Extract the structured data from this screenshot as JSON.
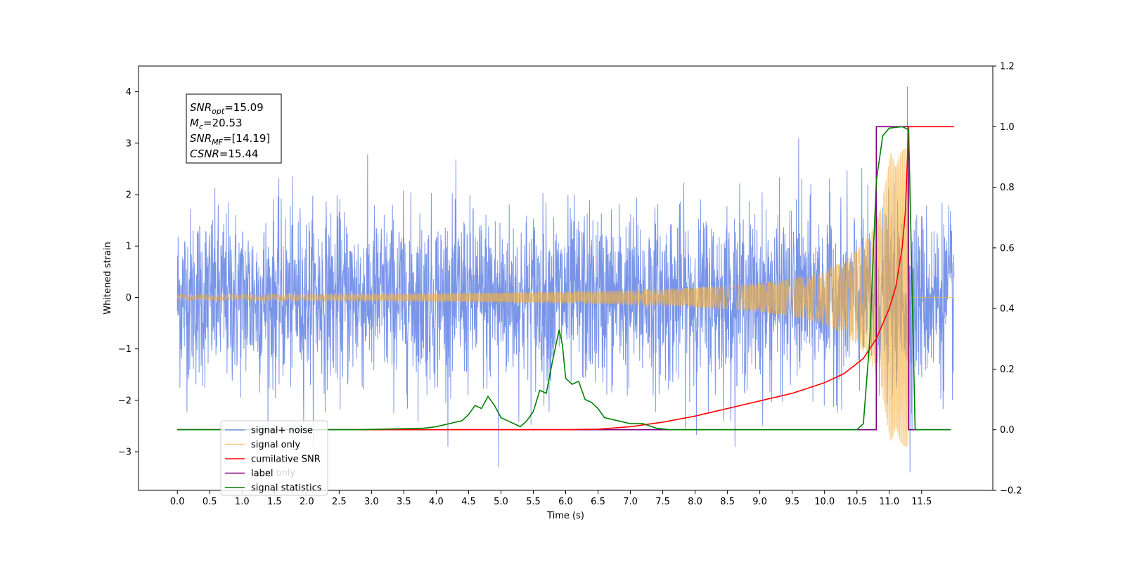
{
  "chart_data": {
    "type": "line",
    "xlabel": "Time (s)",
    "ylabel": "Whitened strain",
    "xlim": [
      -0.6,
      12.6
    ],
    "ylim": [
      -3.75,
      4.5
    ],
    "y2lim": [
      -0.2,
      1.2
    ],
    "x_ticks": [
      "0.0",
      "0.5",
      "1.0",
      "1.5",
      "2.0",
      "2.5",
      "3.0",
      "3.5",
      "4.0",
      "4.5",
      "5.0",
      "5.5",
      "6.0",
      "6.5",
      "7.0",
      "7.5",
      "8.0",
      "8.5",
      "9.0",
      "9.5",
      "10.0",
      "10.5",
      "11.0",
      "11.5"
    ],
    "y_ticks": [
      "−3",
      "−2",
      "−1",
      "0",
      "1",
      "2",
      "3",
      "4"
    ],
    "y2_ticks": [
      "−0.2",
      "0.0",
      "0.2",
      "0.4",
      "0.6",
      "0.8",
      "1.0",
      "1.2"
    ],
    "grid": false,
    "legend_placement": "lower-left",
    "info_box": {
      "lines": [
        {
          "main": "SNR",
          "sub": "opt",
          "rest": "=15.09"
        },
        {
          "main": "M",
          "sub": "c",
          "rest": "=20.53"
        },
        {
          "main": "SNR",
          "sub": "MF",
          "rest": "=[14.19]"
        },
        {
          "main": "CSNR",
          "sub": "",
          "rest": "=15.44"
        }
      ]
    },
    "hidden_overlapped_legend_text": [
      "label only"
    ],
    "series": [
      {
        "name": "signal+ noise",
        "color": "#6b8ae6",
        "axis": "left",
        "description_values": {
          "x_start": 0.0,
          "x_end": 12.0,
          "typical_band": [
            -1.9,
            1.9
          ],
          "max": 4.1,
          "min": -3.4
        }
      },
      {
        "name": "signal only",
        "color": "#f5b041",
        "axis": "left",
        "chirp": {
          "x_start": 0.0,
          "x_end": 12.0,
          "merger_time": 11.3,
          "peak_amplitude": 2.9
        }
      },
      {
        "name": "cumilative SNR",
        "color": "#ff0000",
        "axis": "right",
        "x": [
          0.0,
          6.0,
          6.5,
          7.0,
          7.5,
          8.0,
          8.5,
          9.0,
          9.5,
          10.0,
          10.3,
          10.6,
          10.8,
          11.0,
          11.1,
          11.2,
          11.25,
          11.3,
          12.0
        ],
        "y": [
          0.0,
          0.0,
          0.002,
          0.01,
          0.025,
          0.045,
          0.07,
          0.095,
          0.12,
          0.155,
          0.185,
          0.235,
          0.3,
          0.4,
          0.47,
          0.6,
          0.72,
          1.0,
          1.0
        ]
      },
      {
        "name": "label",
        "color": "#800080",
        "axis": "right",
        "x": [
          0.0,
          10.8,
          10.8,
          11.3,
          11.3,
          11.95
        ],
        "y": [
          0.0,
          0.0,
          1.0,
          1.0,
          0.0,
          0.0
        ]
      },
      {
        "name": "signal statistics",
        "color": "#008000",
        "axis": "right",
        "x": [
          0.0,
          2.8,
          3.4,
          3.8,
          4.0,
          4.2,
          4.4,
          4.5,
          4.6,
          4.7,
          4.8,
          4.9,
          5.0,
          5.1,
          5.2,
          5.3,
          5.4,
          5.5,
          5.6,
          5.7,
          5.8,
          5.9,
          5.95,
          6.0,
          6.1,
          6.2,
          6.3,
          6.4,
          6.5,
          6.6,
          6.8,
          7.0,
          7.2,
          7.4,
          7.6,
          8.0,
          9.3,
          10.5,
          10.6,
          10.7,
          10.8,
          10.9,
          11.0,
          11.2,
          11.3,
          11.35,
          11.4,
          11.95
        ],
        "y": [
          0.0,
          0.0,
          0.003,
          0.005,
          0.01,
          0.02,
          0.03,
          0.05,
          0.08,
          0.07,
          0.11,
          0.08,
          0.04,
          0.03,
          0.02,
          0.01,
          0.03,
          0.06,
          0.13,
          0.12,
          0.23,
          0.33,
          0.28,
          0.17,
          0.15,
          0.16,
          0.1,
          0.09,
          0.07,
          0.04,
          0.03,
          0.02,
          0.02,
          0.005,
          0.0,
          0.0,
          0.0,
          0.0,
          0.02,
          0.3,
          0.82,
          0.97,
          0.995,
          1.0,
          0.99,
          0.5,
          0.0,
          0.0
        ]
      }
    ]
  }
}
